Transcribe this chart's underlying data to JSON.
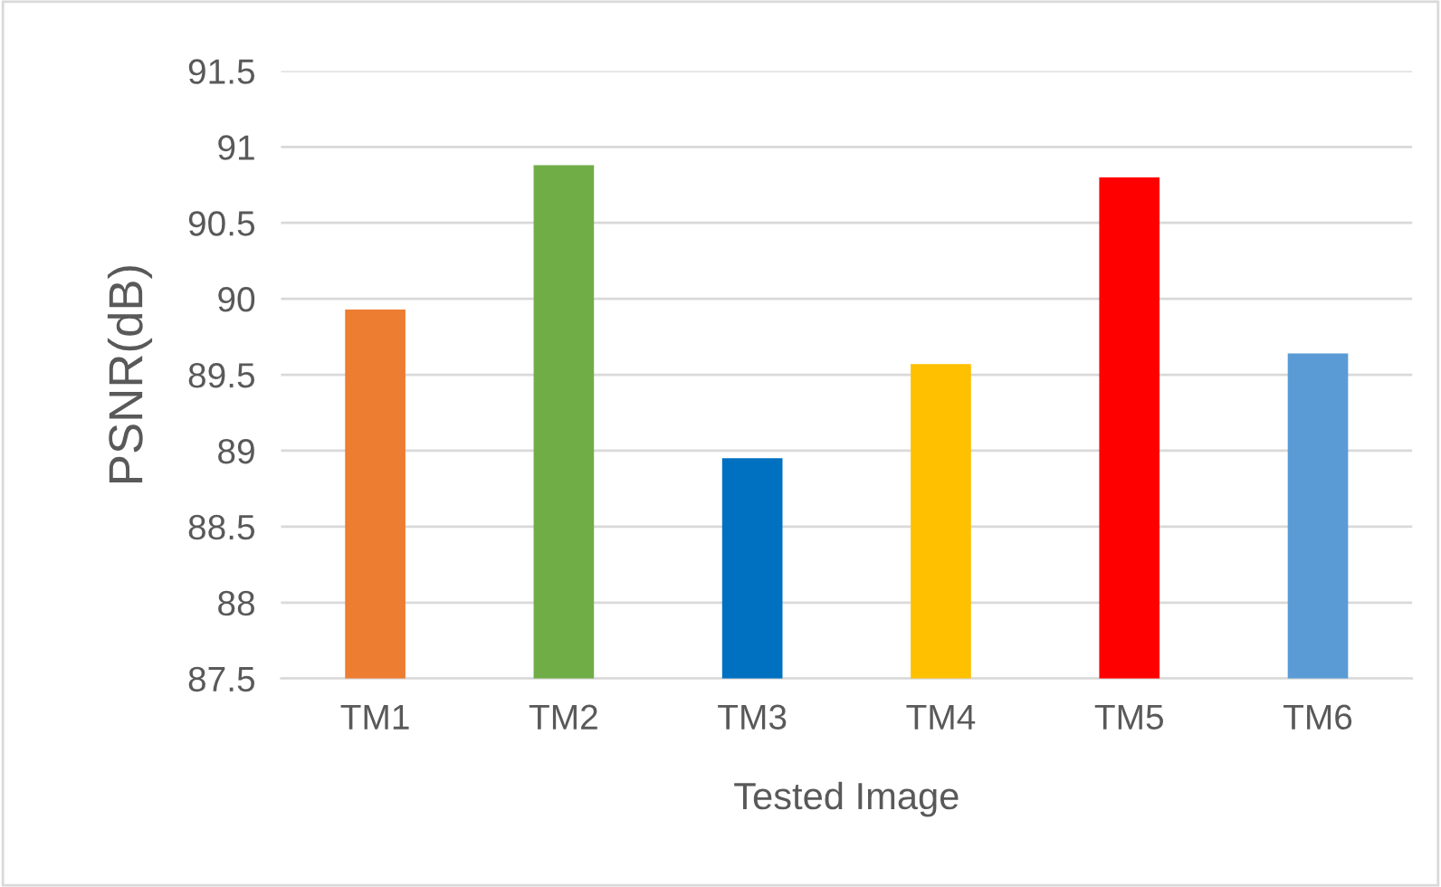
{
  "chart_data": {
    "type": "bar",
    "xlabel": "Tested Image",
    "ylabel": "PSNR(dB)",
    "categories": [
      "TM1",
      "TM2",
      "TM3",
      "TM4",
      "TM5",
      "TM6"
    ],
    "values": [
      89.93,
      90.88,
      88.95,
      89.57,
      90.8,
      89.64
    ],
    "colors": [
      "#ed7d31",
      "#70ad47",
      "#0070c0",
      "#ffc000",
      "#ff0000",
      "#5b9bd5"
    ],
    "ylim": [
      87.5,
      91.5
    ],
    "yticks": [
      87.5,
      88,
      88.5,
      89,
      89.5,
      90,
      90.5,
      91,
      91.5
    ],
    "grid": "y",
    "legend": false
  }
}
